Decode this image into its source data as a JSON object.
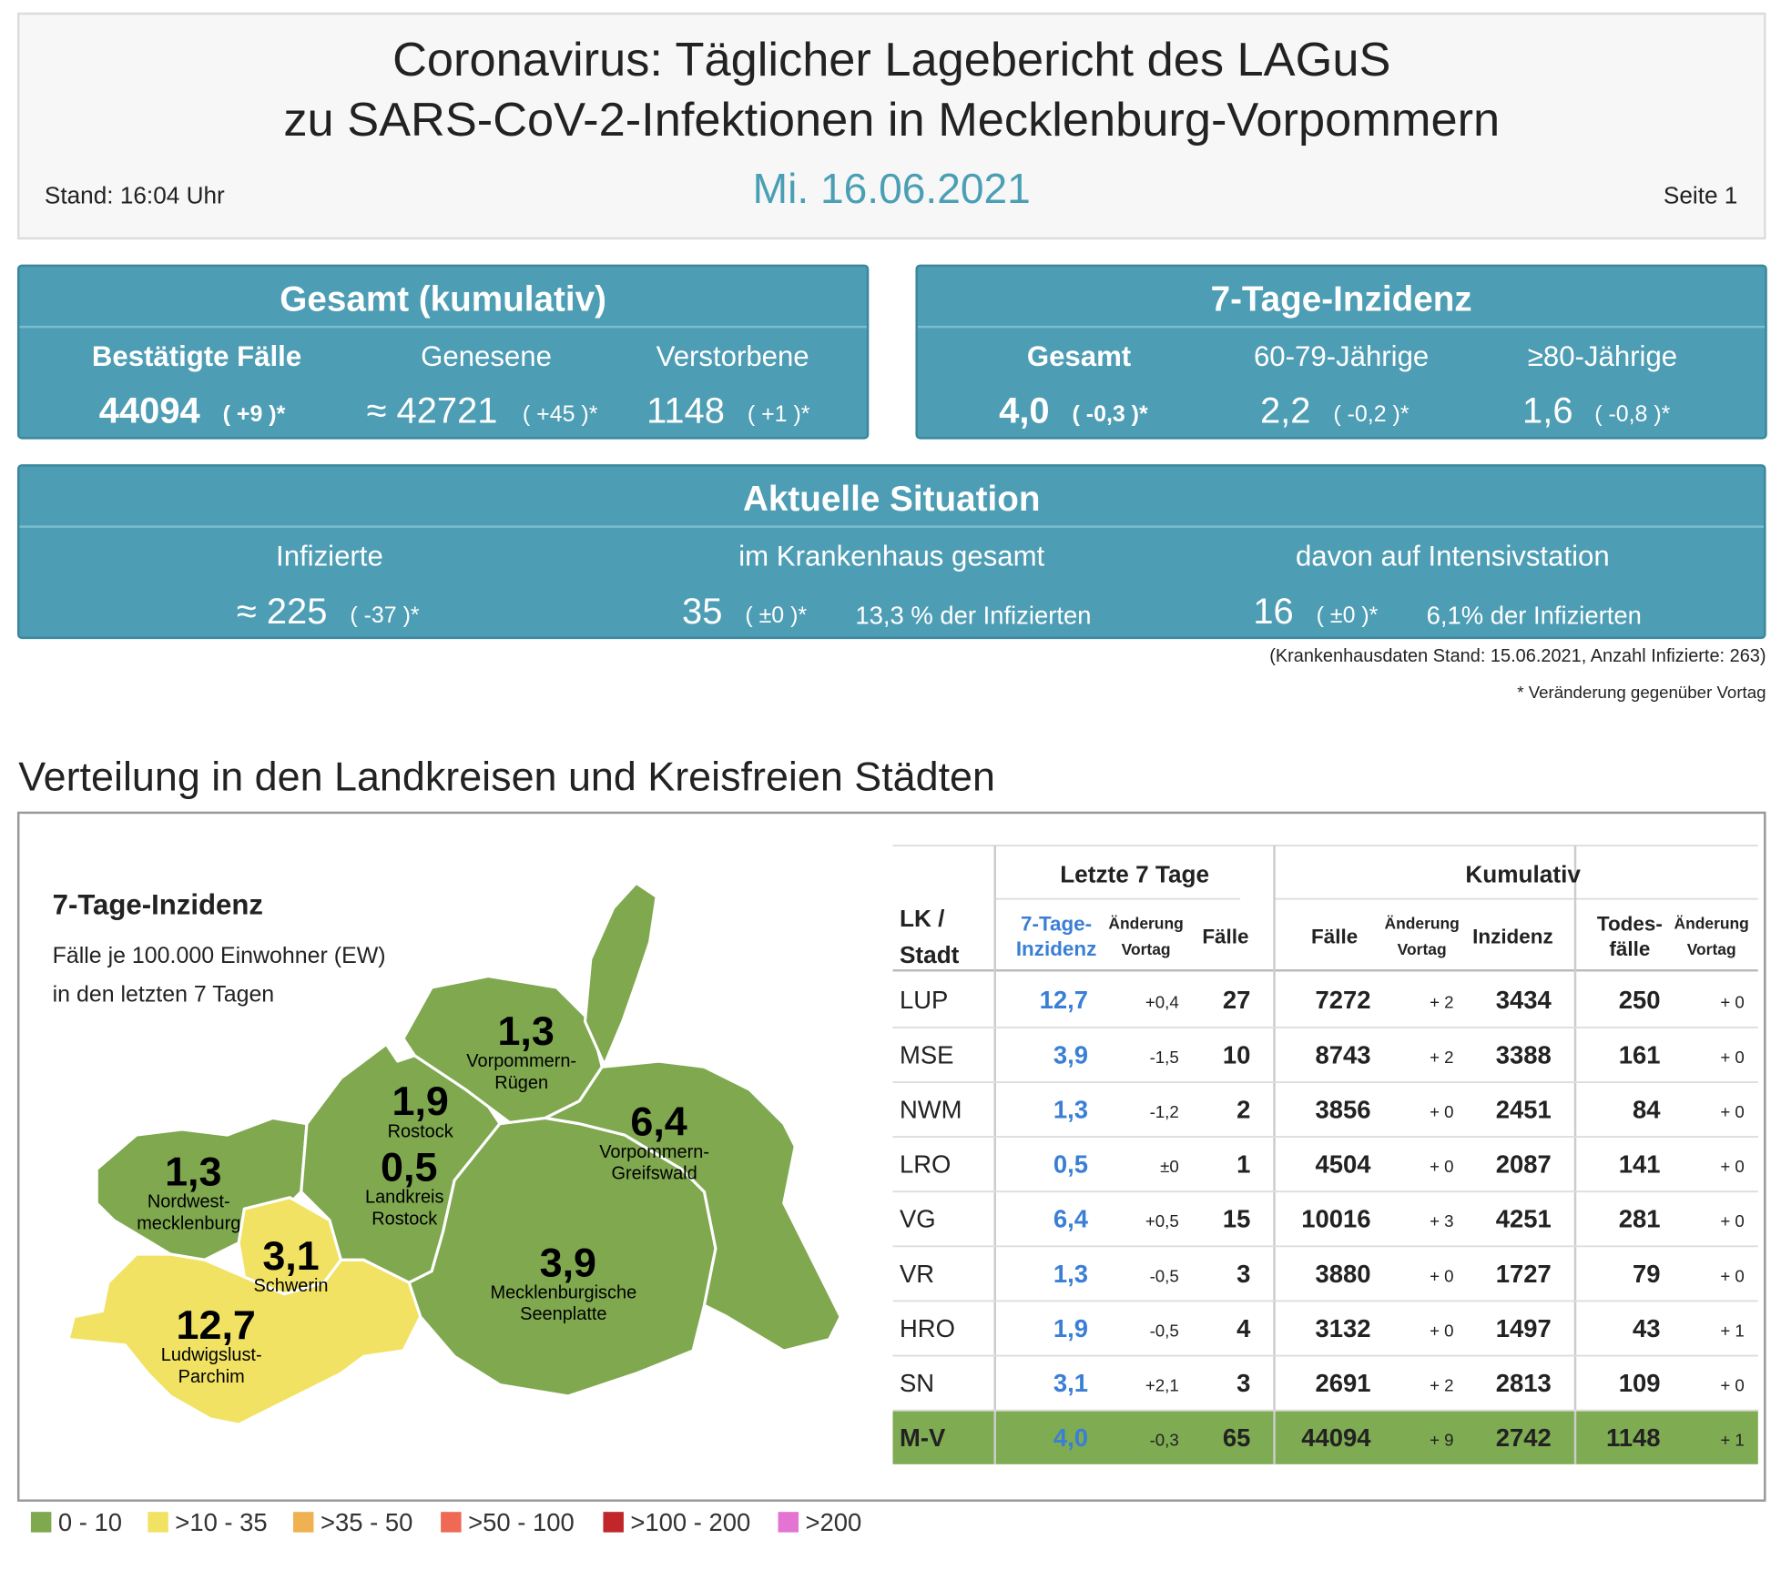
{
  "header": {
    "title_line1": "Coronavirus: Täglicher Lagebericht des LAGuS",
    "title_line2": "zu SARS-CoV-2-Infektionen in Mecklenburg-Vorpommern",
    "stand": "Stand: 16:04 Uhr",
    "date": "Mi. 16.06.2021",
    "page": "Seite 1"
  },
  "gesamt": {
    "title": "Gesamt (kumulativ)",
    "items": [
      {
        "label": "Bestätigte Fälle",
        "value": "44094",
        "change": "( +9 )*"
      },
      {
        "label": "Genesene",
        "value": "≈ 42721",
        "change": "( +45 )*"
      },
      {
        "label": "Verstorbene",
        "value": "1148",
        "change": "( +1 )*"
      }
    ]
  },
  "inzidenz": {
    "title": "7-Tage-Inzidenz",
    "items": [
      {
        "label": "Gesamt",
        "value": "4,0",
        "change": "( -0,3 )*"
      },
      {
        "label": "60-79-Jährige",
        "value": "2,2",
        "change": "( -0,2 )*"
      },
      {
        "label": "≥80-Jährige",
        "value": "1,6",
        "change": "( -0,8 )*"
      }
    ]
  },
  "aktuell": {
    "title": "Aktuelle Situation",
    "items": [
      {
        "label": "Infizierte",
        "value": "≈ 225",
        "change": "( -37 )*"
      },
      {
        "label": "im Krankenhaus gesamt",
        "value": "35",
        "change": "( ±0 )*",
        "share": "13,3 % der Infizierten"
      },
      {
        "label": "davon auf Intensivstation",
        "value": "16",
        "change": "( ±0 )*",
        "share": "6,1% der Infizierten"
      }
    ]
  },
  "notes": [
    "(Krankenhausdaten Stand: 15.06.2021, Anzahl Infizierte: 263)",
    "* Veränderung gegenüber Vortag"
  ],
  "section_title": "Verteilung in den Landkreisen und Kreisfreien Städten",
  "map": {
    "title": "7-Tage-Inzidenz",
    "subtitle_lines": [
      "Fälle je 100.000 Einwohner (EW)",
      "in den letzten 7 Tagen"
    ],
    "districts": [
      {
        "value": "1,3",
        "name_lines": [
          "Nordwest-",
          "mecklenburg"
        ]
      },
      {
        "value": "3,1",
        "name_lines": [
          "Schwerin"
        ]
      },
      {
        "value": "12,7",
        "name_lines": [
          "Ludwigslust-",
          "Parchim"
        ]
      },
      {
        "value": "0,5",
        "name_lines": [
          "Landkreis",
          "Rostock"
        ]
      },
      {
        "value": "1,9",
        "name_lines": [
          "Rostock"
        ]
      },
      {
        "value": "1,3",
        "name_lines": [
          "Vorpommern-",
          "Rügen"
        ]
      },
      {
        "value": "6,4",
        "name_lines": [
          "Vorpommern-",
          "Greifswald"
        ]
      },
      {
        "value": "3,9",
        "name_lines": [
          "Mecklenburgische",
          "Seenplatte"
        ]
      }
    ]
  },
  "legend": [
    {
      "label": "0 - 10",
      "color": "#7fa84f"
    },
    {
      "label": ">10 - 35",
      "color": "#f1e264"
    },
    {
      "label": ">35 - 50",
      "color": "#efb151"
    },
    {
      "label": ">50 - 100",
      "color": "#ee6a55"
    },
    {
      "label": ">100 - 200",
      "color": "#c0262a"
    },
    {
      "label": ">200",
      "color": "#e474d2"
    }
  ],
  "table": {
    "group_headers": [
      "Letzte 7 Tage",
      "Kumulativ"
    ],
    "columns": [
      [
        "LK /",
        "Stadt"
      ],
      [
        "7-Tage-",
        "Inzidenz"
      ],
      [
        "Änderung",
        "Vortag"
      ],
      [
        "Fälle"
      ],
      [
        "Fälle"
      ],
      [
        "Änderung",
        "Vortag"
      ],
      [
        "Inzidenz"
      ],
      [
        "Todes-",
        "fälle"
      ],
      [
        "Änderung",
        "Vortag"
      ]
    ],
    "rows": [
      [
        "LUP",
        "12,7",
        "+0,4",
        "27",
        "7272",
        "+ 2",
        "3434",
        "250",
        "+ 0"
      ],
      [
        "MSE",
        "3,9",
        "-1,5",
        "10",
        "8743",
        "+ 2",
        "3388",
        "161",
        "+ 0"
      ],
      [
        "NWM",
        "1,3",
        "-1,2",
        "2",
        "3856",
        "+ 0",
        "2451",
        "84",
        "+ 0"
      ],
      [
        "LRO",
        "0,5",
        "±0",
        "1",
        "4504",
        "+ 0",
        "2087",
        "141",
        "+ 0"
      ],
      [
        "VG",
        "6,4",
        "+0,5",
        "15",
        "10016",
        "+ 3",
        "4251",
        "281",
        "+ 0"
      ],
      [
        "VR",
        "1,3",
        "-0,5",
        "3",
        "3880",
        "+ 0",
        "1727",
        "79",
        "+ 0"
      ],
      [
        "HRO",
        "1,9",
        "-0,5",
        "4",
        "3132",
        "+ 0",
        "1497",
        "43",
        "+ 1"
      ],
      [
        "SN",
        "3,1",
        "+2,1",
        "3",
        "2691",
        "+ 2",
        "2813",
        "109",
        "+ 0"
      ],
      [
        "M-V",
        "4,0",
        "-0,3",
        "65",
        "44094",
        "+ 9",
        "2742",
        "1148",
        "+ 1"
      ]
    ]
  }
}
